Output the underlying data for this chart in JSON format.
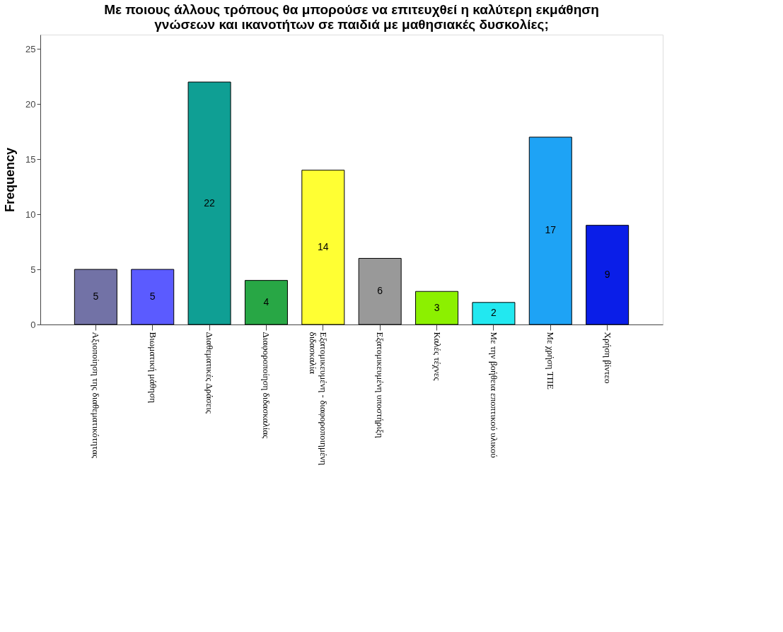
{
  "chart_data": {
    "type": "bar",
    "title": [
      "Με ποιους άλλους τρόπους θα μπορούσε να επιτευχθεί η καλύτερη εκμάθηση",
      "γνώσεων και ικανοτήτων σε παιδιά με μαθησιακές δυσκολίες;"
    ],
    "ylabel": "Frequency",
    "categories": [
      "Αξιοποίηση της διαθεματικότητας",
      "Βιωματική μάθηση",
      "Διαθεματικές Δράσεις",
      "Διαφοροποίηση διδασκαλίας",
      [
        "Εξατομικευμένη - διαφοροποιημένη",
        "διδασκαλία"
      ],
      "Εξατομικευμένη υποστήριξη",
      "Καλές τέχνες",
      "Με την βοήθεια εποπτικού υλικού",
      "Με χρήση ΤΠΕ",
      "Χρήση βίντεο"
    ],
    "values": [
      5,
      5,
      22,
      4,
      14,
      6,
      3,
      2,
      17,
      9
    ],
    "colors": [
      "#7272a6",
      "#5b5bff",
      "#0f9f94",
      "#28a745",
      "#ffff33",
      "#999999",
      "#8cf000",
      "#22e8f0",
      "#1ea3f5",
      "#0a1ee8"
    ],
    "ylim": [
      0,
      26.3
    ],
    "yticks": [
      0,
      5,
      10,
      15,
      20,
      25
    ],
    "grid": false,
    "legend": false,
    "data_labels": true
  }
}
